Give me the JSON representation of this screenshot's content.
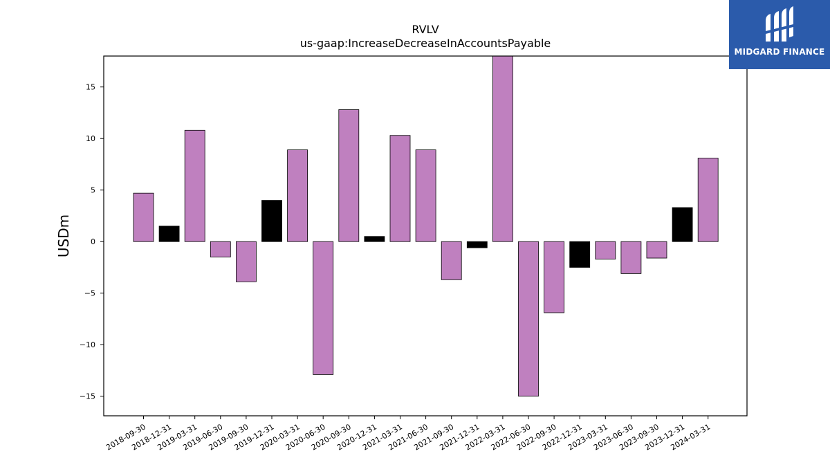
{
  "brand": {
    "name": "MIDGARD FINANCE",
    "bg_color": "#2b5bab",
    "icon": "midgard-logo-icon"
  },
  "chart_data": {
    "type": "bar",
    "title": "RVLV",
    "subtitle": "us-gaap:IncreaseDecreaseInAccountsPayable",
    "xlabel": "",
    "ylabel": "USDm",
    "ylim": [
      -16.9,
      18
    ],
    "yticks": [
      -15,
      -10,
      -5,
      0,
      5,
      10,
      15
    ],
    "ytick_labels": [
      "−15",
      "−10",
      "−5",
      "0",
      "5",
      "10",
      "15"
    ],
    "grid": false,
    "colors": {
      "purple": "#bf80bf",
      "black": "#000000",
      "edge": "#000000"
    },
    "categories": [
      "2018-09-30",
      "2018-12-31",
      "2019-03-31",
      "2019-06-30",
      "2019-09-30",
      "2019-12-31",
      "2020-03-31",
      "2020-06-30",
      "2020-09-30",
      "2020-12-31",
      "2021-03-31",
      "2021-06-30",
      "2021-09-30",
      "2021-12-31",
      "2022-03-31",
      "2022-06-30",
      "2022-09-30",
      "2022-12-31",
      "2023-03-31",
      "2023-06-30",
      "2023-09-30",
      "2023-12-31",
      "2024-03-31"
    ],
    "values": [
      4.7,
      1.5,
      10.8,
      -1.5,
      -3.9,
      4.0,
      8.9,
      -12.9,
      12.8,
      0.5,
      10.3,
      8.9,
      -3.7,
      -0.6,
      18.0,
      -15.0,
      -6.9,
      -2.5,
      -1.7,
      -3.1,
      -1.6,
      3.3,
      8.1
    ],
    "bar_colors": [
      "purple",
      "black",
      "purple",
      "purple",
      "purple",
      "black",
      "purple",
      "purple",
      "purple",
      "black",
      "purple",
      "purple",
      "purple",
      "black",
      "purple",
      "purple",
      "purple",
      "black",
      "purple",
      "purple",
      "purple",
      "black",
      "purple"
    ]
  }
}
